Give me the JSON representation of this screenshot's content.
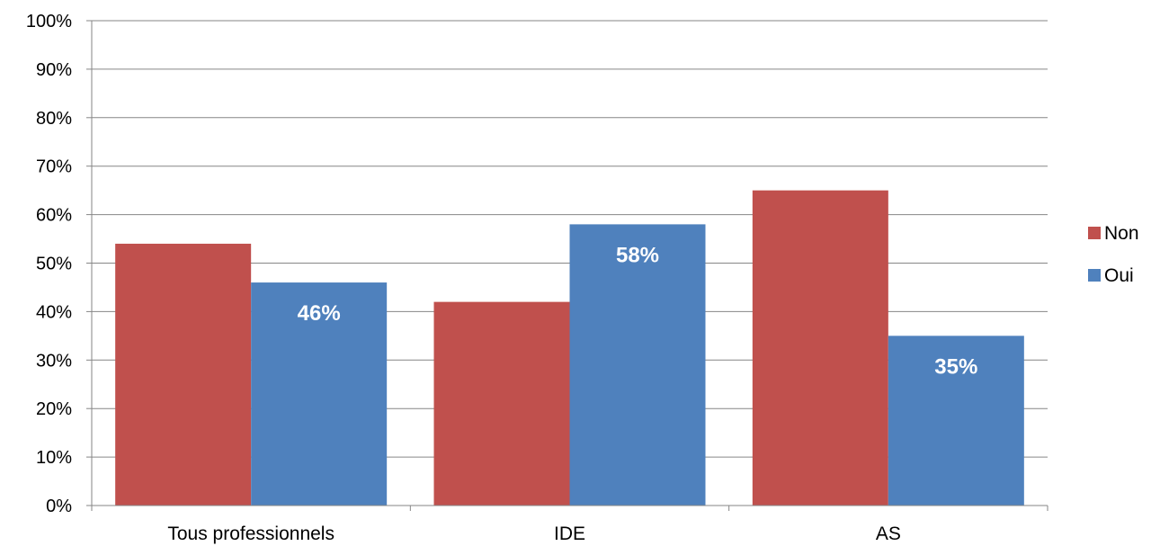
{
  "chart_data": {
    "type": "bar",
    "categories": [
      "Tous professionnels",
      "IDE",
      "AS"
    ],
    "series": [
      {
        "name": "Non",
        "values": [
          54,
          42,
          65
        ],
        "color": "#c0504d",
        "data_labels": [
          "",
          "",
          ""
        ]
      },
      {
        "name": "Oui",
        "values": [
          46,
          58,
          35
        ],
        "color": "#4f81bd",
        "data_labels": [
          "46%",
          "58%",
          "35%"
        ]
      }
    ],
    "title": "",
    "xlabel": "",
    "ylabel": "",
    "ylim": [
      0,
      100
    ],
    "yticks": [
      "0%",
      "10%",
      "20%",
      "30%",
      "40%",
      "50%",
      "60%",
      "70%",
      "80%",
      "90%",
      "100%"
    ],
    "grid": true,
    "legend": "right"
  }
}
